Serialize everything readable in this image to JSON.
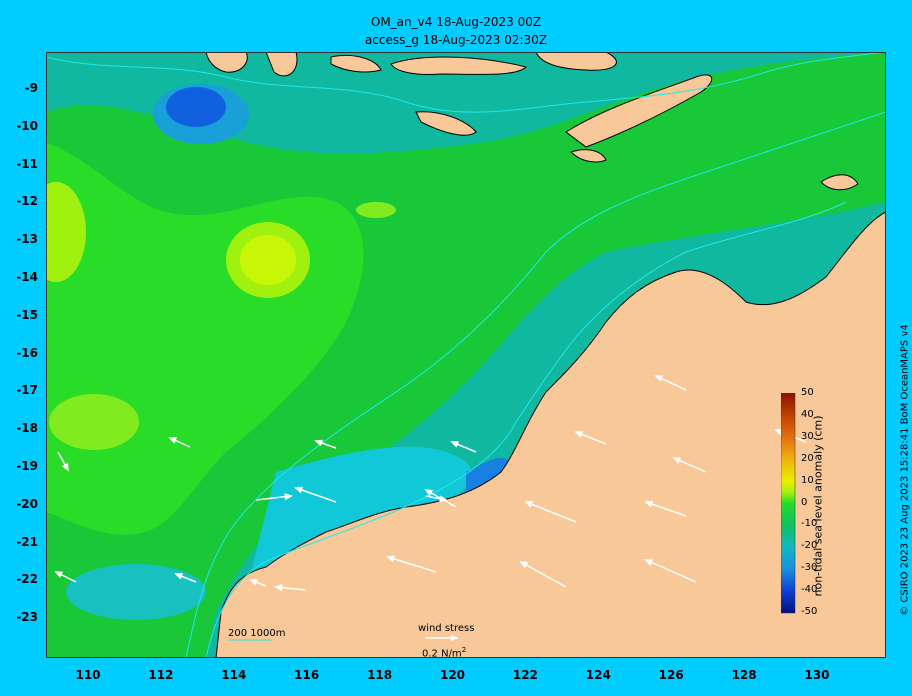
{
  "title": {
    "line1": "OM_an_v4  18-Aug-2023 00Z",
    "line2": "access_g 18-Aug-2023 02:30Z"
  },
  "map": {
    "type": "sea level anomaly map",
    "region": "north-west Australia",
    "lon_range": [
      109,
      132
    ],
    "lat_range": [
      -24,
      -8
    ],
    "x_ticks": [
      "110",
      "112",
      "114",
      "116",
      "118",
      "120",
      "122",
      "124",
      "126",
      "128",
      "130"
    ],
    "y_ticks": [
      "-9",
      "-10",
      "-11",
      "-12",
      "-13",
      "-14",
      "-15",
      "-16",
      "-17",
      "-18",
      "-19",
      "-20",
      "-21",
      "-22",
      "-23"
    ],
    "colors": {
      "land": "#f8c898",
      "frame": "#00ccff",
      "coast": "#000000"
    }
  },
  "colorbar": {
    "label": "non-tidal sea level anomaly (cm)",
    "range": [
      -50,
      50
    ],
    "ticks": [
      "50",
      "40",
      "30",
      "20",
      "10",
      "0",
      "-10",
      "-20",
      "-30",
      "-40",
      "-50"
    ]
  },
  "legend": {
    "depth_label": "200  1000m",
    "wind_label": "wind stress",
    "wind_unit": "0.2 N/m",
    "wind_unit_sup": "2"
  },
  "credit": "© CSIRO 2023   23 Aug 2023 15:28:41 BoM OceanMAPS v4"
}
